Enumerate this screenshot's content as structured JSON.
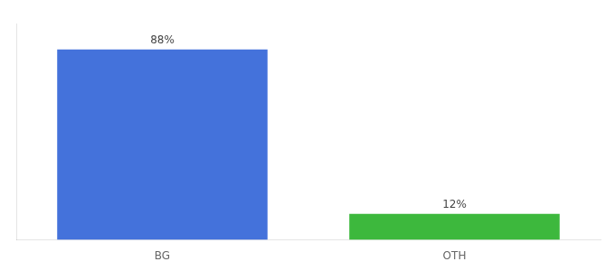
{
  "chart_data": {
    "type": "bar",
    "categories": [
      "BG",
      "OTH"
    ],
    "values": [
      88,
      12
    ],
    "value_labels": [
      "88%",
      "12%"
    ],
    "colors": [
      "#4472db",
      "#3db83d"
    ],
    "ylim": [
      0,
      100
    ],
    "grid": false,
    "tick_labels": "x"
  }
}
